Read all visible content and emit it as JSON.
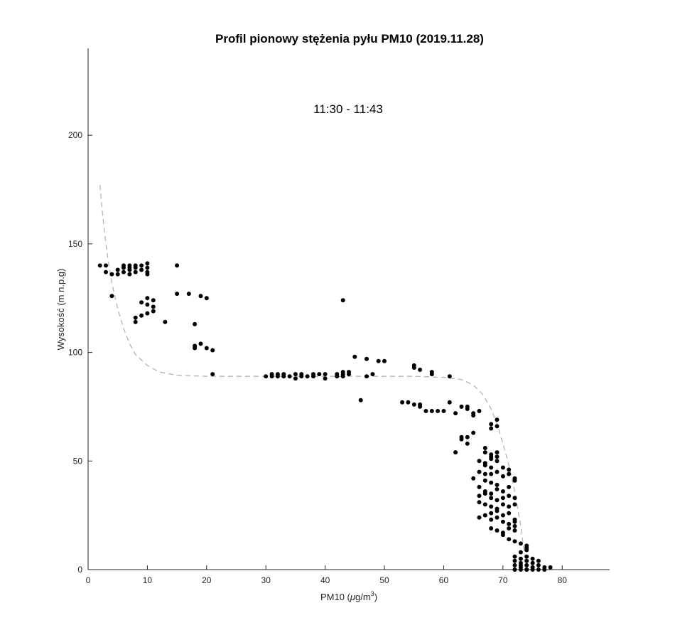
{
  "chart_data": {
    "type": "scatter",
    "title": "Profil pionowy stężenia pyłu PM10 (2019.11.28)",
    "annotation": "11:30 - 11:43",
    "xlabel_main": "PM10 (",
    "xlabel_mu": "μ",
    "xlabel_unit": "g/m",
    "xlabel_sup": "3",
    "xlabel_close": ")",
    "ylabel": "Wysokość (m n.p.g)",
    "xlim": [
      0,
      88
    ],
    "ylim": [
      0,
      240
    ],
    "xticks": [
      0,
      10,
      20,
      30,
      40,
      50,
      60,
      70,
      80
    ],
    "yticks": [
      0,
      50,
      100,
      150,
      200
    ],
    "grid": false,
    "colors": {
      "points": "#000000",
      "fit": "#b3b3b3",
      "axis": "#262626"
    },
    "fit_line": {
      "style": "dashed",
      "x": [
        2.0,
        2.5,
        3.0,
        3.5,
        4.0,
        5.0,
        6.0,
        7.0,
        8.0,
        10.0,
        12.0,
        15.0,
        20.0,
        25.0,
        30.0,
        40.0,
        50.0,
        55.0,
        60.0,
        63.0,
        65.0,
        66.5,
        68.0,
        69.0,
        70.0,
        71.0,
        72.0,
        72.5,
        73.0,
        73.5,
        74.0
      ],
      "y": [
        177,
        162,
        150,
        140,
        132,
        120,
        111,
        104,
        99,
        94,
        91,
        89.5,
        89,
        89,
        89,
        89,
        89,
        89,
        88.5,
        87.5,
        85,
        81,
        74,
        67,
        58,
        48,
        36,
        28,
        20,
        10,
        2
      ]
    },
    "series": [
      {
        "x": [
          2,
          3,
          3,
          4,
          5,
          5,
          6,
          6,
          6,
          7,
          7,
          7,
          7,
          8,
          8,
          8,
          9,
          9,
          10,
          10,
          10,
          10,
          4,
          15,
          15,
          17,
          19,
          20,
          11,
          11,
          11,
          10,
          10,
          9,
          9,
          10,
          8,
          8,
          13,
          18,
          18,
          18,
          19,
          20,
          21,
          21,
          43
        ],
        "y": [
          140,
          140,
          137,
          136,
          136,
          138,
          139,
          137,
          140,
          138,
          136,
          140,
          139,
          140,
          137,
          139,
          140,
          138,
          141,
          139,
          137,
          136,
          126,
          140,
          127,
          127,
          126,
          125,
          124,
          121,
          119,
          125,
          122,
          123,
          117,
          118,
          116,
          114,
          114,
          113,
          103,
          102,
          104,
          102,
          101,
          90,
          124
        ]
      },
      {
        "x": [
          30,
          31,
          31,
          32,
          32,
          33,
          33,
          34,
          35,
          35,
          36,
          36,
          37,
          38,
          38,
          39,
          40,
          40,
          42,
          42,
          43,
          43,
          43,
          44,
          44,
          47,
          48
        ],
        "y": [
          89,
          89,
          90,
          89,
          90,
          90,
          89,
          89,
          88,
          90,
          89,
          90,
          89,
          90,
          89,
          90,
          88,
          90,
          90,
          89,
          91,
          90,
          89,
          90,
          91,
          89,
          90
        ]
      },
      {
        "x": [
          45,
          47,
          49,
          50,
          55,
          55,
          56,
          58,
          58,
          61,
          46,
          53,
          54,
          55,
          56,
          56,
          57,
          58,
          59,
          60,
          61,
          62,
          63,
          64,
          64,
          65,
          65,
          66,
          63,
          63,
          64,
          64,
          65,
          62
        ],
        "y": [
          98,
          97,
          96,
          96,
          94,
          93,
          92,
          91,
          90,
          89,
          78,
          77,
          77,
          76,
          76,
          75,
          73,
          73,
          73,
          73,
          77,
          72,
          75,
          75,
          74,
          72,
          71,
          73,
          61,
          60,
          61,
          58,
          63,
          54
        ]
      },
      {
        "x": [
          68,
          68,
          69,
          69,
          67,
          67,
          68,
          68,
          68,
          69,
          69,
          67,
          66,
          67,
          68,
          69,
          70,
          71,
          71,
          72,
          72,
          65,
          66,
          67,
          68,
          69,
          67,
          68,
          69,
          70,
          66,
          67,
          68,
          69,
          70,
          71,
          66,
          67,
          68,
          69,
          70,
          71,
          72,
          72,
          66,
          67,
          68,
          69,
          70,
          71,
          68,
          69,
          70,
          71,
          72,
          72,
          66,
          67,
          68,
          69,
          70,
          71,
          72,
          68,
          69,
          70,
          71,
          72,
          70,
          71,
          72,
          73,
          74,
          74,
          73,
          74,
          72,
          73,
          74,
          75,
          76,
          72,
          73,
          74,
          75,
          72,
          73,
          74,
          75,
          76,
          77,
          78,
          72,
          73,
          74,
          75,
          72,
          73,
          74,
          75,
          76,
          77
        ],
        "y": [
          67,
          65,
          69,
          66,
          56,
          54,
          53,
          51,
          52,
          54,
          52,
          48,
          50,
          49,
          47,
          50,
          47,
          46,
          44,
          41,
          42,
          42,
          45,
          44,
          44,
          45,
          41,
          40,
          39,
          43,
          38,
          36,
          35,
          37,
          36,
          38,
          34,
          35,
          33,
          32,
          33,
          34,
          33,
          30,
          31,
          30,
          29,
          28,
          30,
          29,
          26,
          27,
          25,
          26,
          23,
          22,
          24,
          25,
          23,
          24,
          22,
          21,
          20,
          19,
          18,
          17,
          19,
          18,
          16,
          14,
          13,
          12,
          11,
          9,
          8,
          10,
          6,
          5,
          6,
          5,
          4,
          4,
          3,
          4,
          3,
          2,
          2,
          2,
          1,
          2,
          1,
          1,
          0,
          1,
          0,
          1,
          0,
          0,
          0,
          0,
          0,
          0
        ]
      }
    ]
  }
}
